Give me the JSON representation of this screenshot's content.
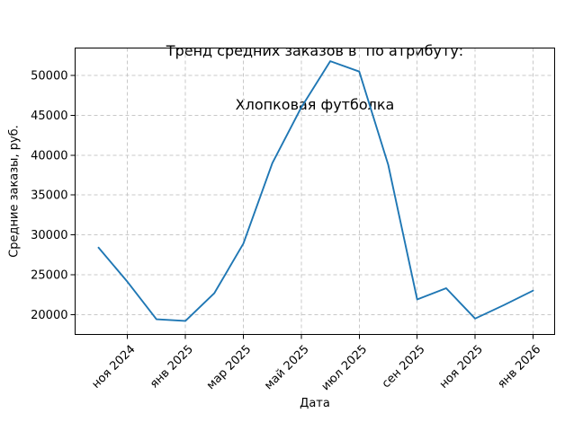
{
  "figure": {
    "background": "#ffffff",
    "text_color": "#000000"
  },
  "chart_data": {
    "type": "line",
    "title_lines": [
      "Тренд средних заказов в  по атрибуту:",
      "Хлопковая футболка"
    ],
    "title": "Тренд средних заказов в  по атрибуту: Хлопковая футболка",
    "xlabel": "Дата",
    "ylabel": "Средние заказы, руб.",
    "categories": [
      "окт 2024",
      "ноя 2024",
      "дек 2024",
      "янв 2025",
      "фев 2025",
      "мар 2025",
      "апр 2025",
      "май 2025",
      "июн 2025",
      "июл 2025",
      "авг 2025",
      "сен 2025",
      "окт 2025",
      "ноя 2025",
      "дек 2025",
      "янв 2026"
    ],
    "values": [
      28400,
      24100,
      19400,
      19200,
      22700,
      28900,
      39000,
      46000,
      51800,
      50500,
      38800,
      21900,
      23300,
      19500,
      21200,
      23000
    ],
    "xtick_indices": [
      1,
      3,
      5,
      7,
      9,
      11,
      13,
      15
    ],
    "xtick_labels": [
      "ноя 2024",
      "янв 2025",
      "мар 2025",
      "май 2025",
      "июл 2025",
      "сен 2025",
      "ноя 2025",
      "янв 2026"
    ],
    "xtick_rotation_deg": 45,
    "ytick_values": [
      20000,
      25000,
      30000,
      35000,
      40000,
      45000,
      50000
    ],
    "ytick_labels": [
      "20000",
      "25000",
      "30000",
      "35000",
      "40000",
      "45000",
      "50000"
    ],
    "ylim": [
      17500,
      53450
    ],
    "grid": true,
    "grid_style": "dashed",
    "legend": false,
    "line_color": "#1f77b4",
    "grid_color": "#c8c8c8",
    "axis_color": "#000000"
  }
}
